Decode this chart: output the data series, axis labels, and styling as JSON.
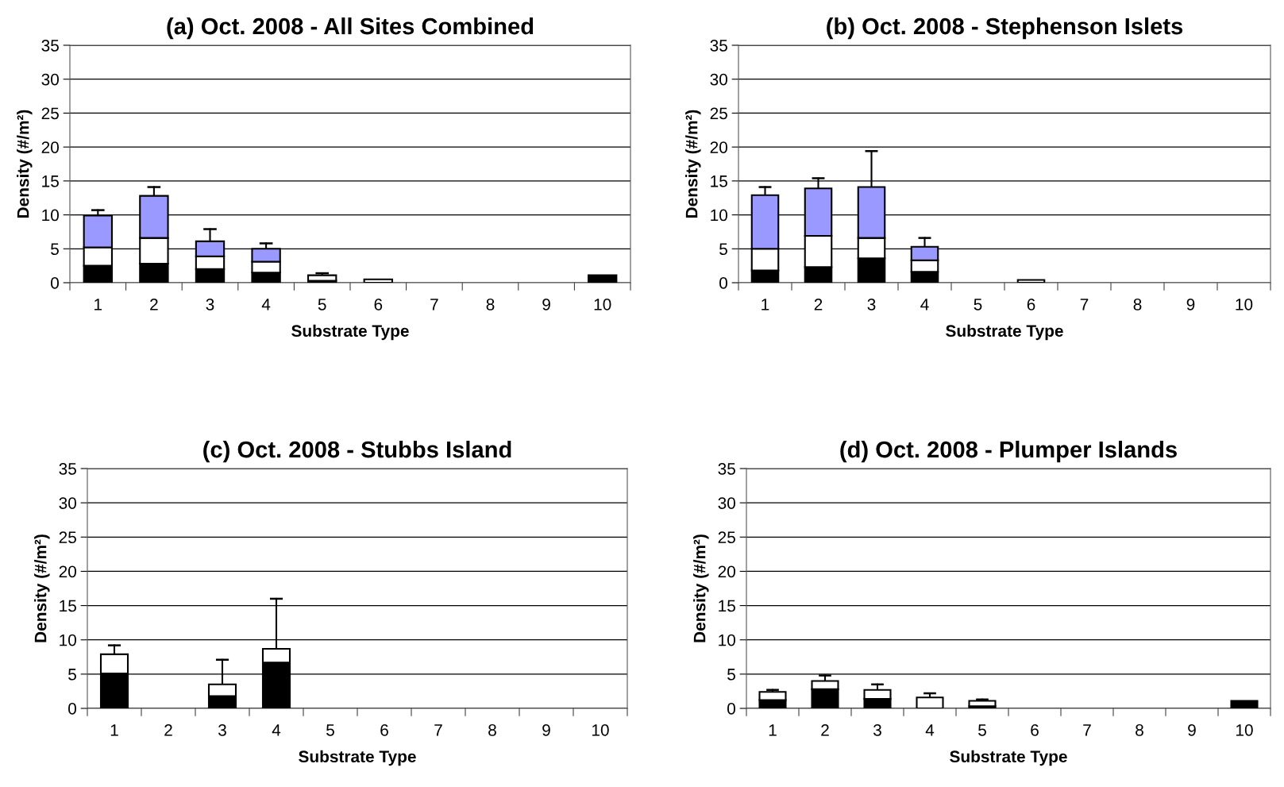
{
  "chart_data": [
    {
      "type": "bar",
      "stacked": true,
      "title": "(a) Oct. 2008 - All Sites Combined",
      "xlabel": "Substrate Type",
      "ylabel": "Density (#/m²)",
      "categories": [
        "1",
        "2",
        "3",
        "4",
        "5",
        "6",
        "7",
        "8",
        "9",
        "10"
      ],
      "ylim": [
        0,
        35
      ],
      "yticks": [
        0,
        5,
        10,
        15,
        20,
        25,
        30,
        35
      ],
      "grid": "y",
      "series": [
        {
          "color": "#000000",
          "values": [
            2.5,
            2.8,
            2.0,
            1.5,
            0.3,
            null,
            null,
            null,
            null,
            1.1
          ]
        },
        {
          "color": "#ffffff",
          "values": [
            2.7,
            3.8,
            1.9,
            1.6,
            0.8,
            0.5,
            null,
            null,
            null,
            null
          ],
          "errors": [
            null,
            null,
            null,
            null,
            [
              1.1,
              1.4
            ],
            null,
            null,
            null,
            null,
            null
          ]
        },
        {
          "color": "#9999ff",
          "values": [
            4.7,
            6.2,
            2.2,
            1.9,
            null,
            null,
            null,
            null,
            null,
            null
          ],
          "errors": [
            [
              9.9,
              10.7
            ],
            [
              12.8,
              14.1
            ],
            [
              6.1,
              7.9
            ],
            [
              5.0,
              5.8
            ],
            null,
            null,
            null,
            null,
            null,
            null
          ]
        }
      ]
    },
    {
      "type": "bar",
      "stacked": true,
      "title": "(b) Oct. 2008 - Stephenson Islets",
      "xlabel": "Substrate Type",
      "ylabel": "Density (#/m²)",
      "categories": [
        "1",
        "2",
        "3",
        "4",
        "5",
        "6",
        "7",
        "8",
        "9",
        "10"
      ],
      "ylim": [
        0,
        35
      ],
      "yticks": [
        0,
        5,
        10,
        15,
        20,
        25,
        30,
        35
      ],
      "grid": "y",
      "series": [
        {
          "color": "#000000",
          "values": [
            1.8,
            2.3,
            3.6,
            1.6,
            null,
            null,
            null,
            null,
            null,
            null
          ]
        },
        {
          "color": "#ffffff",
          "values": [
            3.2,
            4.6,
            3.0,
            1.7,
            null,
            0.4,
            null,
            null,
            null,
            null
          ]
        },
        {
          "color": "#9999ff",
          "values": [
            7.9,
            7.0,
            7.5,
            2.0,
            null,
            null,
            null,
            null,
            null,
            null
          ],
          "errors": [
            [
              12.9,
              14.1
            ],
            [
              13.9,
              15.4
            ],
            [
              14.1,
              19.4
            ],
            [
              5.3,
              6.6
            ],
            null,
            null,
            null,
            null,
            null,
            null
          ]
        }
      ]
    },
    {
      "type": "bar",
      "stacked": true,
      "title": "(c) Oct. 2008 - Stubbs Island",
      "xlabel": "Substrate Type",
      "ylabel": "Density (#/m²)",
      "categories": [
        "1",
        "2",
        "3",
        "4",
        "5",
        "6",
        "7",
        "8",
        "9",
        "10"
      ],
      "ylim": [
        0,
        35
      ],
      "yticks": [
        0,
        5,
        10,
        15,
        20,
        25,
        30,
        35
      ],
      "grid": "y",
      "series": [
        {
          "color": "#000000",
          "values": [
            5.1,
            null,
            1.8,
            6.7,
            null,
            null,
            null,
            null,
            null,
            null
          ]
        },
        {
          "color": "#ffffff",
          "values": [
            2.8,
            null,
            1.7,
            2.0,
            null,
            null,
            null,
            null,
            null,
            null
          ],
          "errors": [
            [
              7.9,
              9.2
            ],
            null,
            [
              3.5,
              7.1
            ],
            [
              8.7,
              16.0
            ],
            null,
            null,
            null,
            null,
            null,
            null
          ]
        }
      ]
    },
    {
      "type": "bar",
      "stacked": true,
      "title": "(d) Oct. 2008 - Plumper Islands",
      "xlabel": "Substrate Type",
      "ylabel": "Density (#/m²)",
      "categories": [
        "1",
        "2",
        "3",
        "4",
        "5",
        "6",
        "7",
        "8",
        "9",
        "10"
      ],
      "ylim": [
        0,
        35
      ],
      "yticks": [
        0,
        5,
        10,
        15,
        20,
        25,
        30,
        35
      ],
      "grid": "y",
      "series": [
        {
          "color": "#000000",
          "values": [
            1.2,
            2.8,
            1.4,
            null,
            0.3,
            null,
            null,
            null,
            null,
            1.1
          ]
        },
        {
          "color": "#ffffff",
          "values": [
            1.2,
            1.2,
            1.3,
            1.6,
            0.8,
            null,
            null,
            null,
            null,
            null
          ],
          "errors": [
            [
              2.4,
              2.7
            ],
            [
              4.0,
              4.8
            ],
            [
              2.7,
              3.5
            ],
            [
              1.6,
              2.2
            ],
            [
              1.1,
              1.3
            ],
            null,
            null,
            null,
            null,
            null
          ]
        }
      ]
    }
  ]
}
